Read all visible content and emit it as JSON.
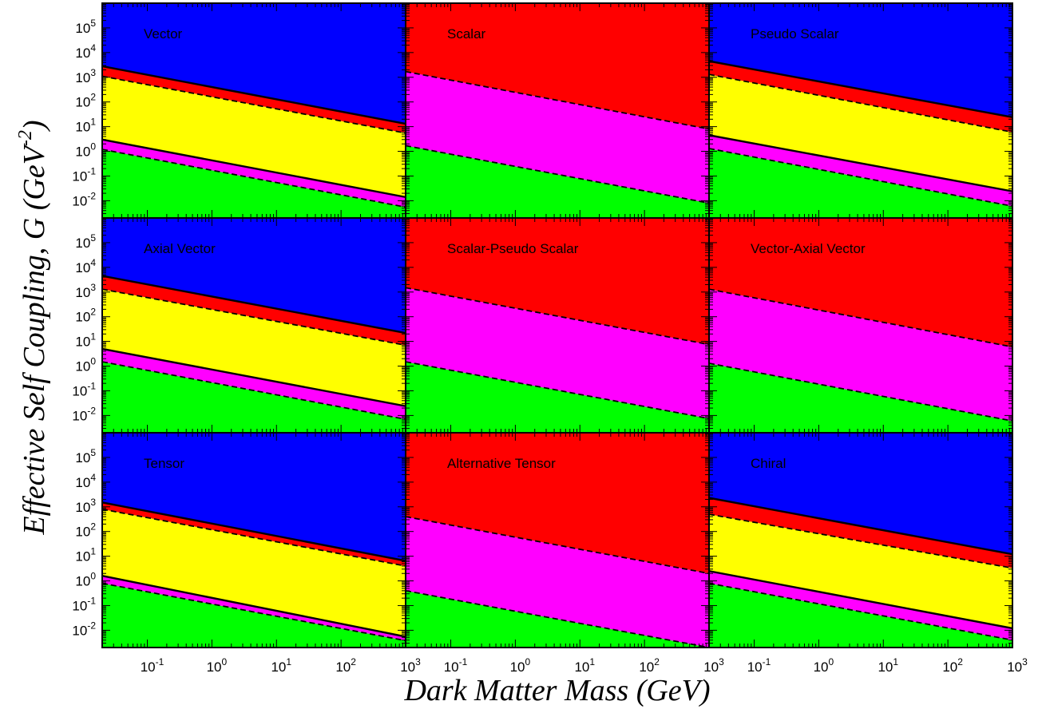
{
  "chart_data": {
    "type": "area",
    "layout": "3x3 grid of panels sharing axes",
    "xlabel": "Dark Matter Mass (GeV)",
    "ylabel": {
      "main": "Effective Self Coupling, G (GeV",
      "exp": "-2",
      "close": ")"
    },
    "x_scale": "log",
    "y_scale": "log",
    "xlim": [
      0.02,
      1000
    ],
    "ylim": [
      0.002,
      1000000
    ],
    "x_ticks": [
      {
        "m": "10",
        "e": "-1",
        "v": 0.1
      },
      {
        "m": "10",
        "e": "0",
        "v": 1
      },
      {
        "m": "10",
        "e": "1",
        "v": 10
      },
      {
        "m": "10",
        "e": "2",
        "v": 100
      },
      {
        "m": "10",
        "e": "3",
        "v": 1000
      }
    ],
    "y_ticks": [
      {
        "m": "10",
        "e": "-2",
        "v": 0.01
      },
      {
        "m": "10",
        "e": "-1",
        "v": 0.1
      },
      {
        "m": "10",
        "e": "0",
        "v": 1
      },
      {
        "m": "10",
        "e": "1",
        "v": 10
      },
      {
        "m": "10",
        "e": "2",
        "v": 100
      },
      {
        "m": "10",
        "e": "3",
        "v": 1000
      },
      {
        "m": "10",
        "e": "4",
        "v": 10000
      },
      {
        "m": "10",
        "e": "5",
        "v": 100000
      }
    ],
    "region_colors": [
      "#00ff00",
      "#ff00ff",
      "#ffff00",
      "#ff0000",
      "#0000ff"
    ],
    "panels": [
      {
        "label": "Vector",
        "boundaries": [
          {
            "style": "dashed",
            "y_left": 1.2,
            "y_right": 0.0055
          },
          {
            "style": "solid",
            "y_left": 3.0,
            "y_right": 0.014
          },
          {
            "style": "dashed",
            "y_left": 1100,
            "y_right": 5.5
          },
          {
            "style": "solid",
            "y_left": 2800,
            "y_right": 13
          }
        ]
      },
      {
        "label": "Scalar",
        "boundaries": [
          {
            "style": "dashed",
            "y_left": 1.7,
            "y_right": 0.008
          },
          {
            "style": "dashed",
            "y_left": 1700,
            "y_right": 8
          }
        ]
      },
      {
        "label": "Pseudo Scalar",
        "boundaries": [
          {
            "style": "dashed",
            "y_left": 1.3,
            "y_right": 0.006
          },
          {
            "style": "solid",
            "y_left": 4.5,
            "y_right": 0.024
          },
          {
            "style": "dashed",
            "y_left": 1300,
            "y_right": 6
          },
          {
            "style": "solid",
            "y_left": 4500,
            "y_right": 24
          }
        ]
      },
      {
        "label": "Axial Vector",
        "boundaries": [
          {
            "style": "dashed",
            "y_left": 1.5,
            "y_right": 0.007
          },
          {
            "style": "solid",
            "y_left": 5,
            "y_right": 0.024
          },
          {
            "style": "dashed",
            "y_left": 1300,
            "y_right": 7
          },
          {
            "style": "solid",
            "y_left": 4500,
            "y_right": 22
          }
        ]
      },
      {
        "label": "Scalar-Pseudo Scalar",
        "boundaries": [
          {
            "style": "dashed",
            "y_left": 1.5,
            "y_right": 0.0075
          },
          {
            "style": "dashed",
            "y_left": 1500,
            "y_right": 7.5
          }
        ]
      },
      {
        "label": "Vector-Axial Vector",
        "boundaries": [
          {
            "style": "dashed",
            "y_left": 1.3,
            "y_right": 0.006
          },
          {
            "style": "dashed",
            "y_left": 1300,
            "y_right": 6
          }
        ]
      },
      {
        "label": "Tensor",
        "boundaries": [
          {
            "style": "dashed",
            "y_left": 0.8,
            "y_right": 0.0038
          },
          {
            "style": "solid",
            "y_left": 1.6,
            "y_right": 0.0055
          },
          {
            "style": "dashed",
            "y_left": 800,
            "y_right": 4
          },
          {
            "style": "solid",
            "y_left": 1500,
            "y_right": 6.5
          }
        ]
      },
      {
        "label": "Alternative Tensor",
        "boundaries": [
          {
            "style": "dashed",
            "y_left": 0.4,
            "y_right": 0.002
          },
          {
            "style": "dashed",
            "y_left": 400,
            "y_right": 2
          }
        ]
      },
      {
        "label": "Chiral",
        "boundaries": [
          {
            "style": "dashed",
            "y_left": 0.8,
            "y_right": 0.004
          },
          {
            "style": "solid",
            "y_left": 2.5,
            "y_right": 0.012
          },
          {
            "style": "dashed",
            "y_left": 500,
            "y_right": 3.3
          },
          {
            "style": "solid",
            "y_left": 2300,
            "y_right": 12
          }
        ]
      }
    ]
  }
}
